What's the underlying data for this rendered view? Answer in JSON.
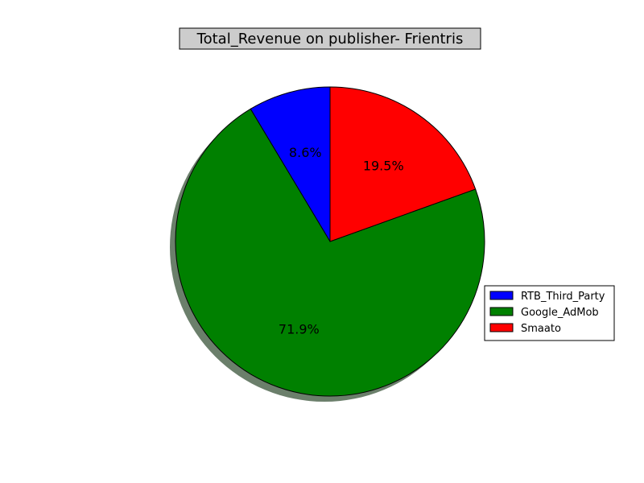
{
  "chart_data": {
    "type": "pie",
    "title": "Total_Revenue on publisher- Frientris",
    "labels": [
      "RTB_Third_Party",
      "Google_AdMob",
      "Smaato"
    ],
    "values": [
      8.6,
      71.9,
      19.5
    ],
    "percent_labels": [
      "8.6%",
      "71.9%",
      "19.5%"
    ],
    "colors": [
      "#0000ff",
      "#008000",
      "#ff0000"
    ],
    "start_angle_deg": 90,
    "direction": "counterclockwise",
    "shadow": true,
    "legend_position": "right"
  },
  "style": {
    "title_box_fill": "#cccccc",
    "edge_color": "#000000",
    "shadow_color": "#6b7f6b"
  }
}
